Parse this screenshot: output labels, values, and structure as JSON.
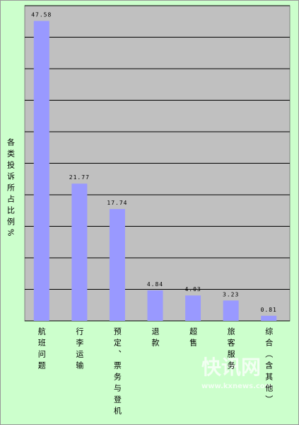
{
  "chart_data": {
    "type": "bar",
    "y_label": "各类投诉所占比例%",
    "categories": [
      "航班问题",
      "行李运输",
      "预定、票务与登机",
      "退款",
      "超售",
      "旅客服务",
      "综合（含其他）"
    ],
    "values": [
      47.58,
      21.77,
      17.74,
      4.84,
      4.03,
      3.23,
      0.81
    ],
    "color": "#9999ff",
    "ylim": [
      0,
      50
    ],
    "yticks": [
      0,
      5,
      10,
      15,
      20,
      25,
      30,
      35,
      40,
      45,
      50
    ],
    "grid": true,
    "watermark": [
      "快讯网",
      "www.kxnews.com"
    ]
  }
}
